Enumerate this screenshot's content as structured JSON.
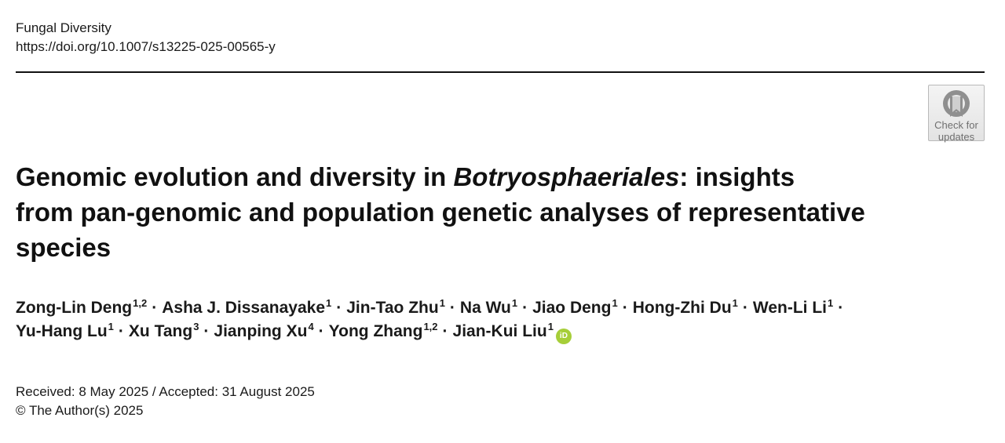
{
  "header": {
    "journal": "Fungal Diversity",
    "doi": "https://doi.org/10.1007/s13225-025-00565-y"
  },
  "badge": {
    "line1": "Check for",
    "line2": "updates"
  },
  "title": {
    "line1_pre": "Genomic evolution and diversity in ",
    "line1_italic": "Botryosphaeriales",
    "line1_post": ": insights",
    "line2": "from pan-genomic and population genetic analyses of representative",
    "line3": "species"
  },
  "authors": {
    "line1": [
      {
        "name": "Zong-Lin Deng",
        "aff": "1,2"
      },
      {
        "name": "Asha J. Dissanayake",
        "aff": "1"
      },
      {
        "name": "Jin-Tao Zhu",
        "aff": "1"
      },
      {
        "name": "Na Wu",
        "aff": "1"
      },
      {
        "name": "Jiao Deng",
        "aff": "1"
      },
      {
        "name": "Hong-Zhi Du",
        "aff": "1"
      },
      {
        "name": "Wen-Li Li",
        "aff": "1"
      }
    ],
    "line2": [
      {
        "name": "Yu-Hang Lu",
        "aff": "1"
      },
      {
        "name": "Xu Tang",
        "aff": "3"
      },
      {
        "name": "Jianping Xu",
        "aff": "4"
      },
      {
        "name": "Yong Zhang",
        "aff": "1,2"
      },
      {
        "name": "Jian-Kui Liu",
        "aff": "1"
      }
    ],
    "separator": "·",
    "orcid_label": "iD",
    "orcid_color": "#a6ce39"
  },
  "dates": {
    "received_accepted": "Received: 8 May 2025 / Accepted: 31 August 2025",
    "copyright": "© The Author(s) 2025"
  }
}
